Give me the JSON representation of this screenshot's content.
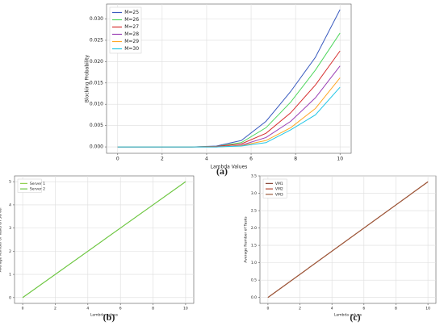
{
  "chart_data": [
    {
      "type": "line",
      "caption": "(a)",
      "xlabel": "Lambda Values",
      "ylabel": "Blocking Probability",
      "x": [
        0,
        1.11,
        2.22,
        3.33,
        4.44,
        5.56,
        6.67,
        7.78,
        8.89,
        10
      ],
      "series": [
        {
          "name": "M=25",
          "color": "#3a5bbf",
          "values": [
            0,
            0,
            0,
            0,
            0.0002,
            0.0015,
            0.006,
            0.013,
            0.021,
            0.0322
          ]
        },
        {
          "name": "M=26",
          "color": "#4fd65e",
          "values": [
            0,
            0,
            0,
            0,
            0.0001,
            0.001,
            0.0045,
            0.0105,
            0.018,
            0.0267
          ]
        },
        {
          "name": "M=27",
          "color": "#d62f2f",
          "values": [
            0,
            0,
            0,
            0,
            0.0001,
            0.0007,
            0.0032,
            0.008,
            0.0145,
            0.0225
          ]
        },
        {
          "name": "M=28",
          "color": "#9a3fb5",
          "values": [
            0,
            0,
            0,
            0,
            0,
            0.0004,
            0.0022,
            0.006,
            0.0115,
            0.019
          ]
        },
        {
          "name": "M=29",
          "color": "#ffa726",
          "values": [
            0,
            0,
            0,
            0,
            0,
            0.0003,
            0.0015,
            0.0045,
            0.009,
            0.0162
          ]
        },
        {
          "name": "M=30",
          "color": "#22c6e6",
          "values": [
            0,
            0,
            0,
            0,
            0,
            0.0002,
            0.001,
            0.004,
            0.0075,
            0.014
          ]
        }
      ],
      "xlim": [
        -0.5,
        10.5
      ],
      "xticks": [
        0,
        2,
        4,
        6,
        8,
        10
      ],
      "ylim": [
        -0.0015,
        0.0335
      ],
      "yticks": [
        {
          "value": 0,
          "label": "0.000"
        },
        0.005,
        {
          "value": 0.01,
          "label": "0.010"
        },
        0.015,
        {
          "value": 0.02,
          "label": "0.020"
        },
        0.025,
        {
          "value": 0.03,
          "label": "0.030"
        }
      ],
      "grid": true,
      "legend": "upper-left"
    },
    {
      "type": "line",
      "caption": "(b)",
      "xlabel": "Lambda values",
      "ylabel": "Average Number of Tasks on Server",
      "x": [
        0,
        10
      ],
      "series": [
        {
          "name": "Server 1",
          "color": "#8fd14f",
          "values": [
            0,
            5
          ]
        },
        {
          "name": "Server 2",
          "color": "#6cc644",
          "values": [
            0,
            5
          ]
        }
      ],
      "xlim": [
        -0.5,
        10.5
      ],
      "xticks": [
        0,
        2,
        4,
        6,
        8,
        10
      ],
      "ylim": [
        -0.25,
        5.25
      ],
      "yticks": [
        0,
        1,
        2,
        3,
        4,
        5
      ],
      "grid": true,
      "legend": "upper-left"
    },
    {
      "type": "line",
      "caption": "(c)",
      "xlabel": "Lambda values",
      "ylabel": "Average Number of Tasks",
      "x": [
        0,
        10
      ],
      "series": [
        {
          "name": "VM1",
          "color": "#8c4a3a",
          "values": [
            0,
            3.33
          ]
        },
        {
          "name": "VM2",
          "color": "#b5452f",
          "values": [
            0,
            3.33
          ]
        },
        {
          "name": "VM3",
          "color": "#9c5b3c",
          "values": [
            0,
            3.33
          ]
        }
      ],
      "xlim": [
        -0.5,
        10.5
      ],
      "xticks": [
        0,
        2,
        4,
        6,
        8,
        10
      ],
      "ylim": [
        -0.17,
        3.5
      ],
      "yticks": [
        {
          "value": 0,
          "label": "0.0"
        },
        0.5,
        {
          "value": 1,
          "label": "1.0"
        },
        1.5,
        {
          "value": 2,
          "label": "2.0"
        },
        2.5,
        {
          "value": 3,
          "label": "3.0"
        },
        3.5
      ],
      "grid": true,
      "legend": "upper-left"
    }
  ]
}
